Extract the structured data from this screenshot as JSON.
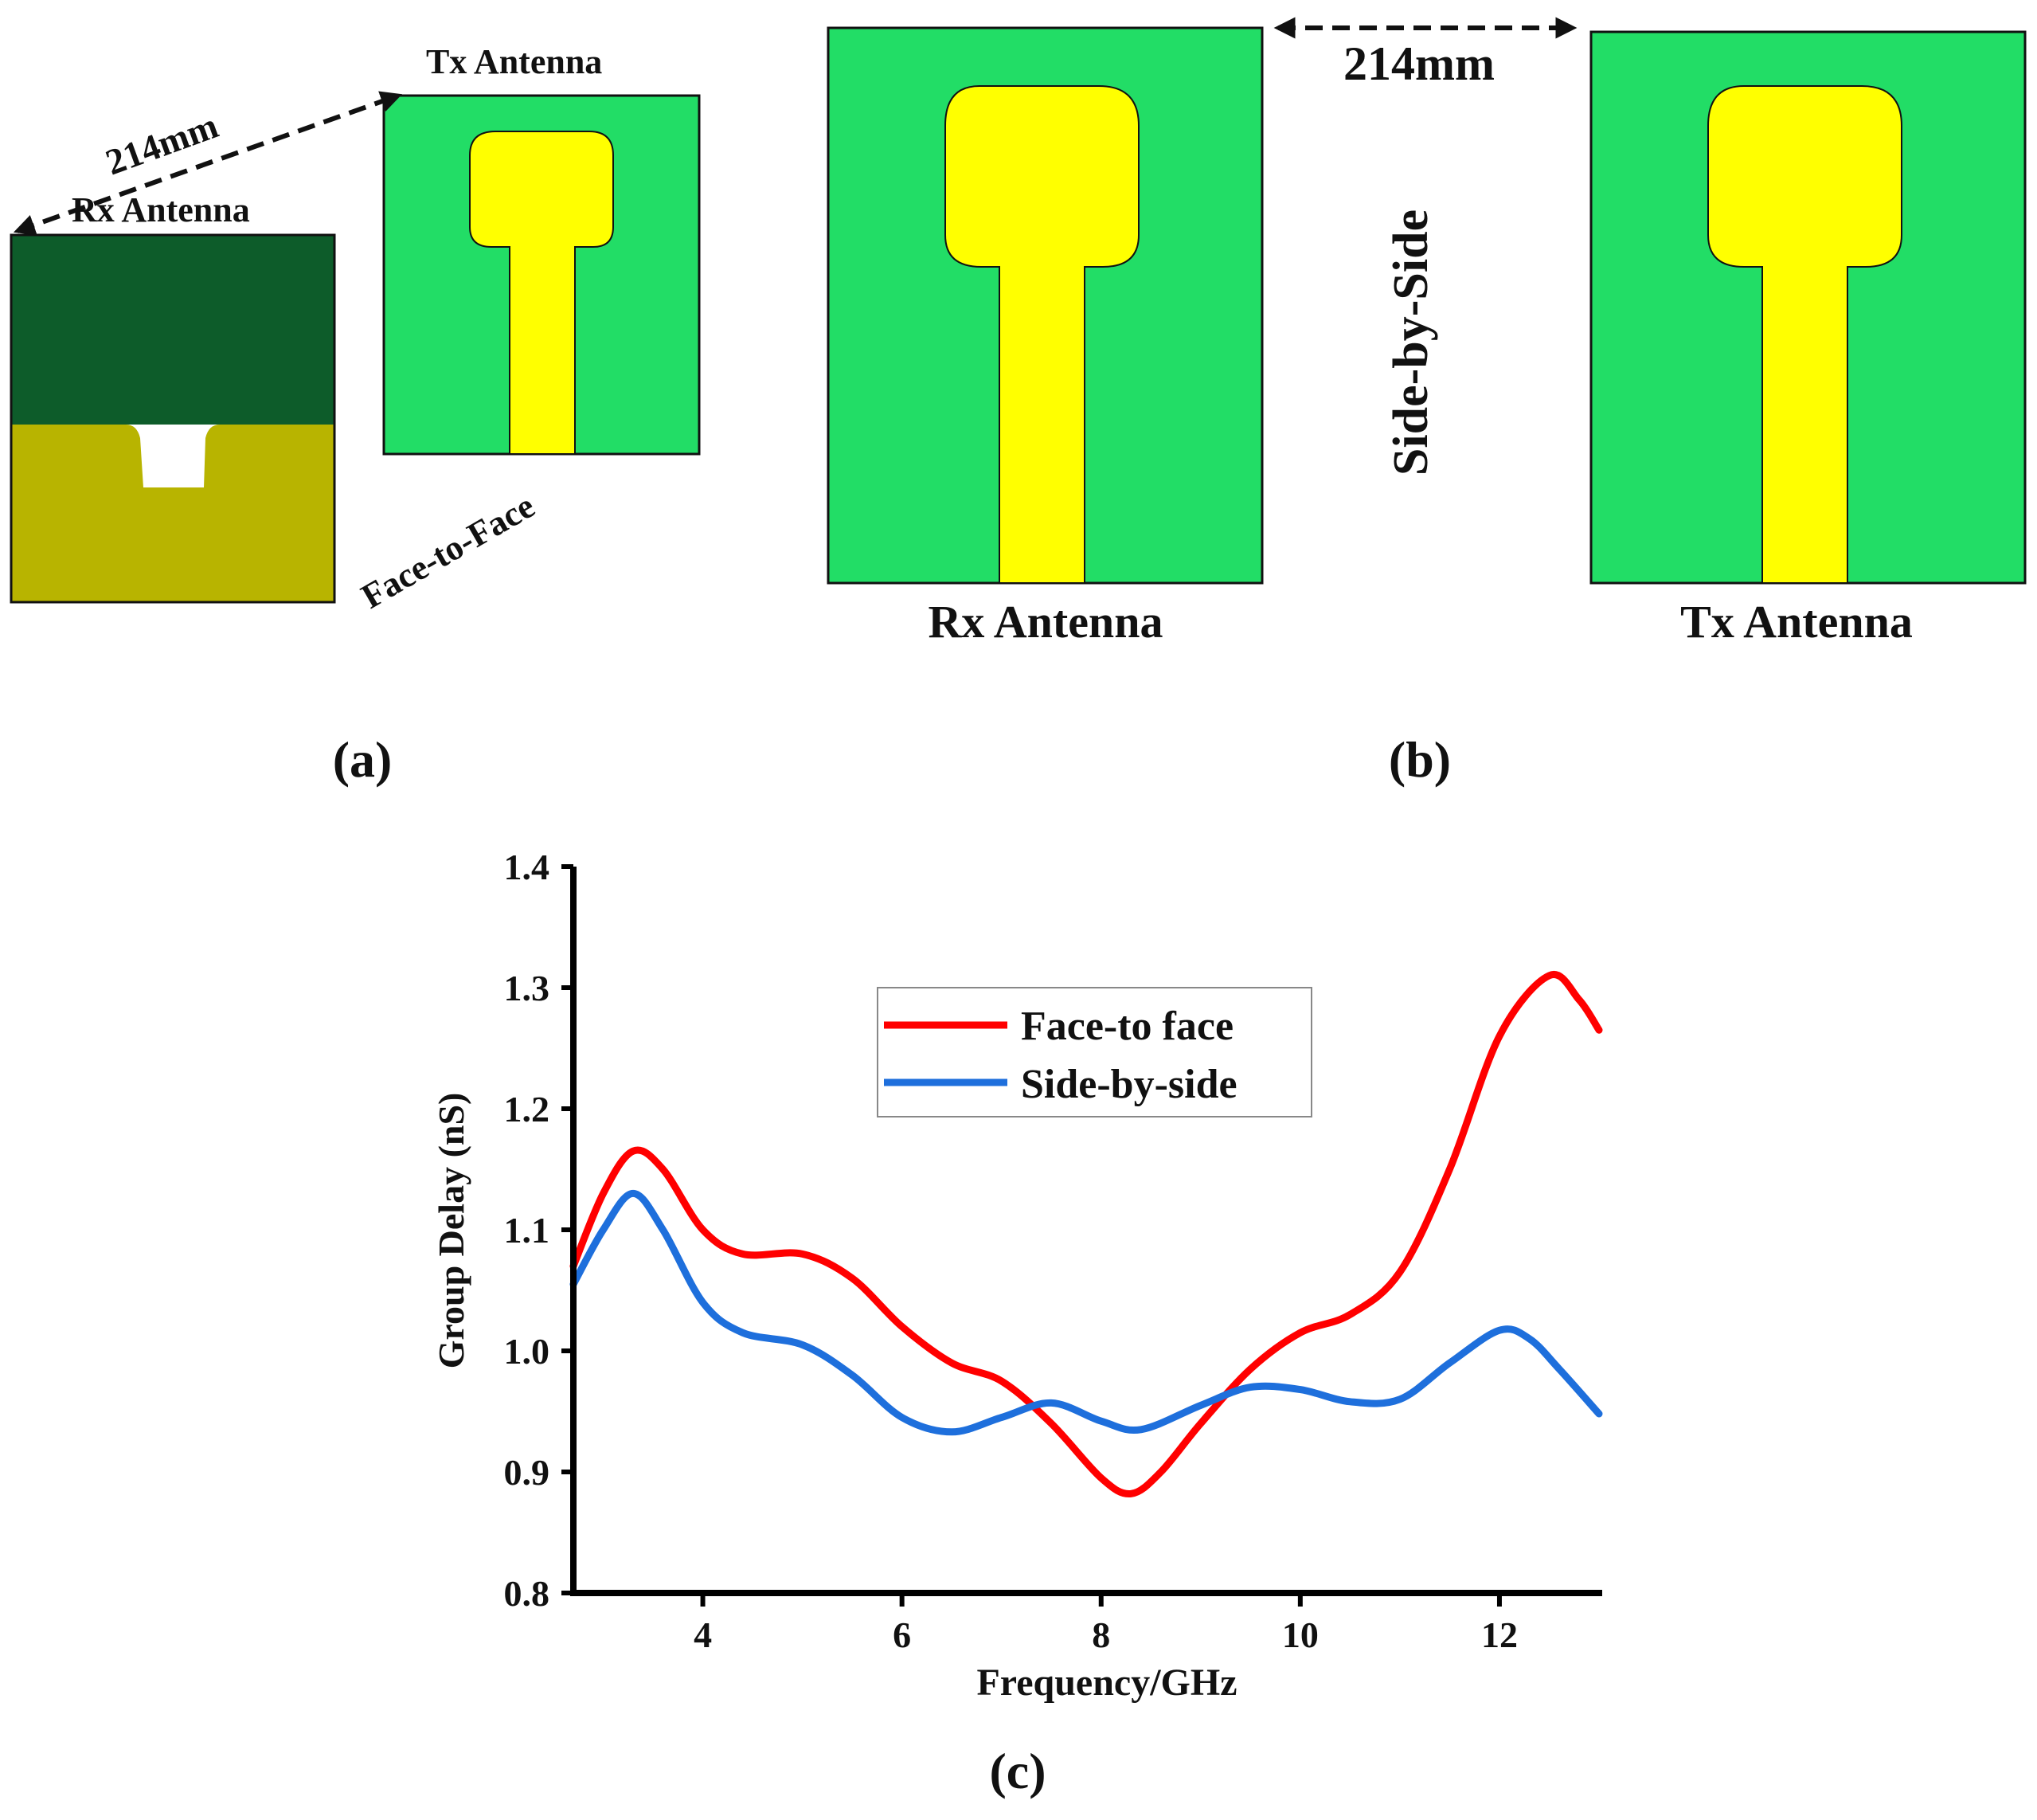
{
  "colors": {
    "substrate": "#22dd66",
    "patch": "#ffff00",
    "ground_dark": "#0d5c2a",
    "ground_olive": "#b8b400",
    "outline": "#111111",
    "series_red": "#ff0000",
    "series_blue": "#1e6fdc"
  },
  "panel_a": {
    "tx_label": "Tx Antenna",
    "rx_label": "Rx Antenna",
    "distance": "214mm",
    "orientation": "Face-to-Face",
    "caption": "(a)"
  },
  "panel_b": {
    "rx_label": "Rx Antenna",
    "tx_label": "Tx Antenna",
    "distance": "214mm",
    "orientation": "Side-by-Side",
    "caption": "(b)"
  },
  "panel_c": {
    "caption": "(c)"
  },
  "chart_data": {
    "type": "line",
    "xlabel": "Frequency/GHz",
    "ylabel": "Group Delay (nS)",
    "xlim": [
      2.7,
      13.0
    ],
    "ylim": [
      0.8,
      1.4
    ],
    "xticks": [
      4,
      6,
      8,
      10,
      12
    ],
    "xtick_labels": [
      "4",
      "6",
      "8",
      "10",
      "12"
    ],
    "yticks": [
      0.8,
      0.9,
      1.0,
      1.1,
      1.2,
      1.3,
      1.4
    ],
    "ytick_labels": [
      "0.8",
      "0.9",
      "1.0",
      "1.1",
      "1.2",
      "1.3",
      "1.4"
    ],
    "grid": false,
    "legend_position": "upper-center",
    "series": [
      {
        "name": "Face-to face",
        "color": "#ff0000",
        "x": [
          2.7,
          3.0,
          3.3,
          3.6,
          4.0,
          4.4,
          5.0,
          5.5,
          6.0,
          6.5,
          7.0,
          7.5,
          8.0,
          8.3,
          8.6,
          9.0,
          9.5,
          10.0,
          10.5,
          11.0,
          11.5,
          12.0,
          12.5,
          12.8,
          13.0
        ],
        "y": [
          1.07,
          1.13,
          1.165,
          1.15,
          1.1,
          1.08,
          1.08,
          1.06,
          1.02,
          0.99,
          0.975,
          0.94,
          0.895,
          0.882,
          0.9,
          0.94,
          0.985,
          1.015,
          1.03,
          1.065,
          1.15,
          1.26,
          1.31,
          1.29,
          1.265
        ]
      },
      {
        "name": "Side-by-side",
        "color": "#1e6fdc",
        "x": [
          2.7,
          3.0,
          3.3,
          3.6,
          4.0,
          4.4,
          5.0,
          5.5,
          6.0,
          6.5,
          7.0,
          7.5,
          8.0,
          8.4,
          9.0,
          9.5,
          10.0,
          10.5,
          11.0,
          11.5,
          12.0,
          12.3,
          12.6,
          13.0
        ],
        "y": [
          1.055,
          1.1,
          1.13,
          1.1,
          1.04,
          1.015,
          1.005,
          0.98,
          0.945,
          0.933,
          0.945,
          0.957,
          0.942,
          0.935,
          0.955,
          0.97,
          0.968,
          0.958,
          0.96,
          0.99,
          1.017,
          1.01,
          0.985,
          0.948
        ]
      }
    ]
  }
}
